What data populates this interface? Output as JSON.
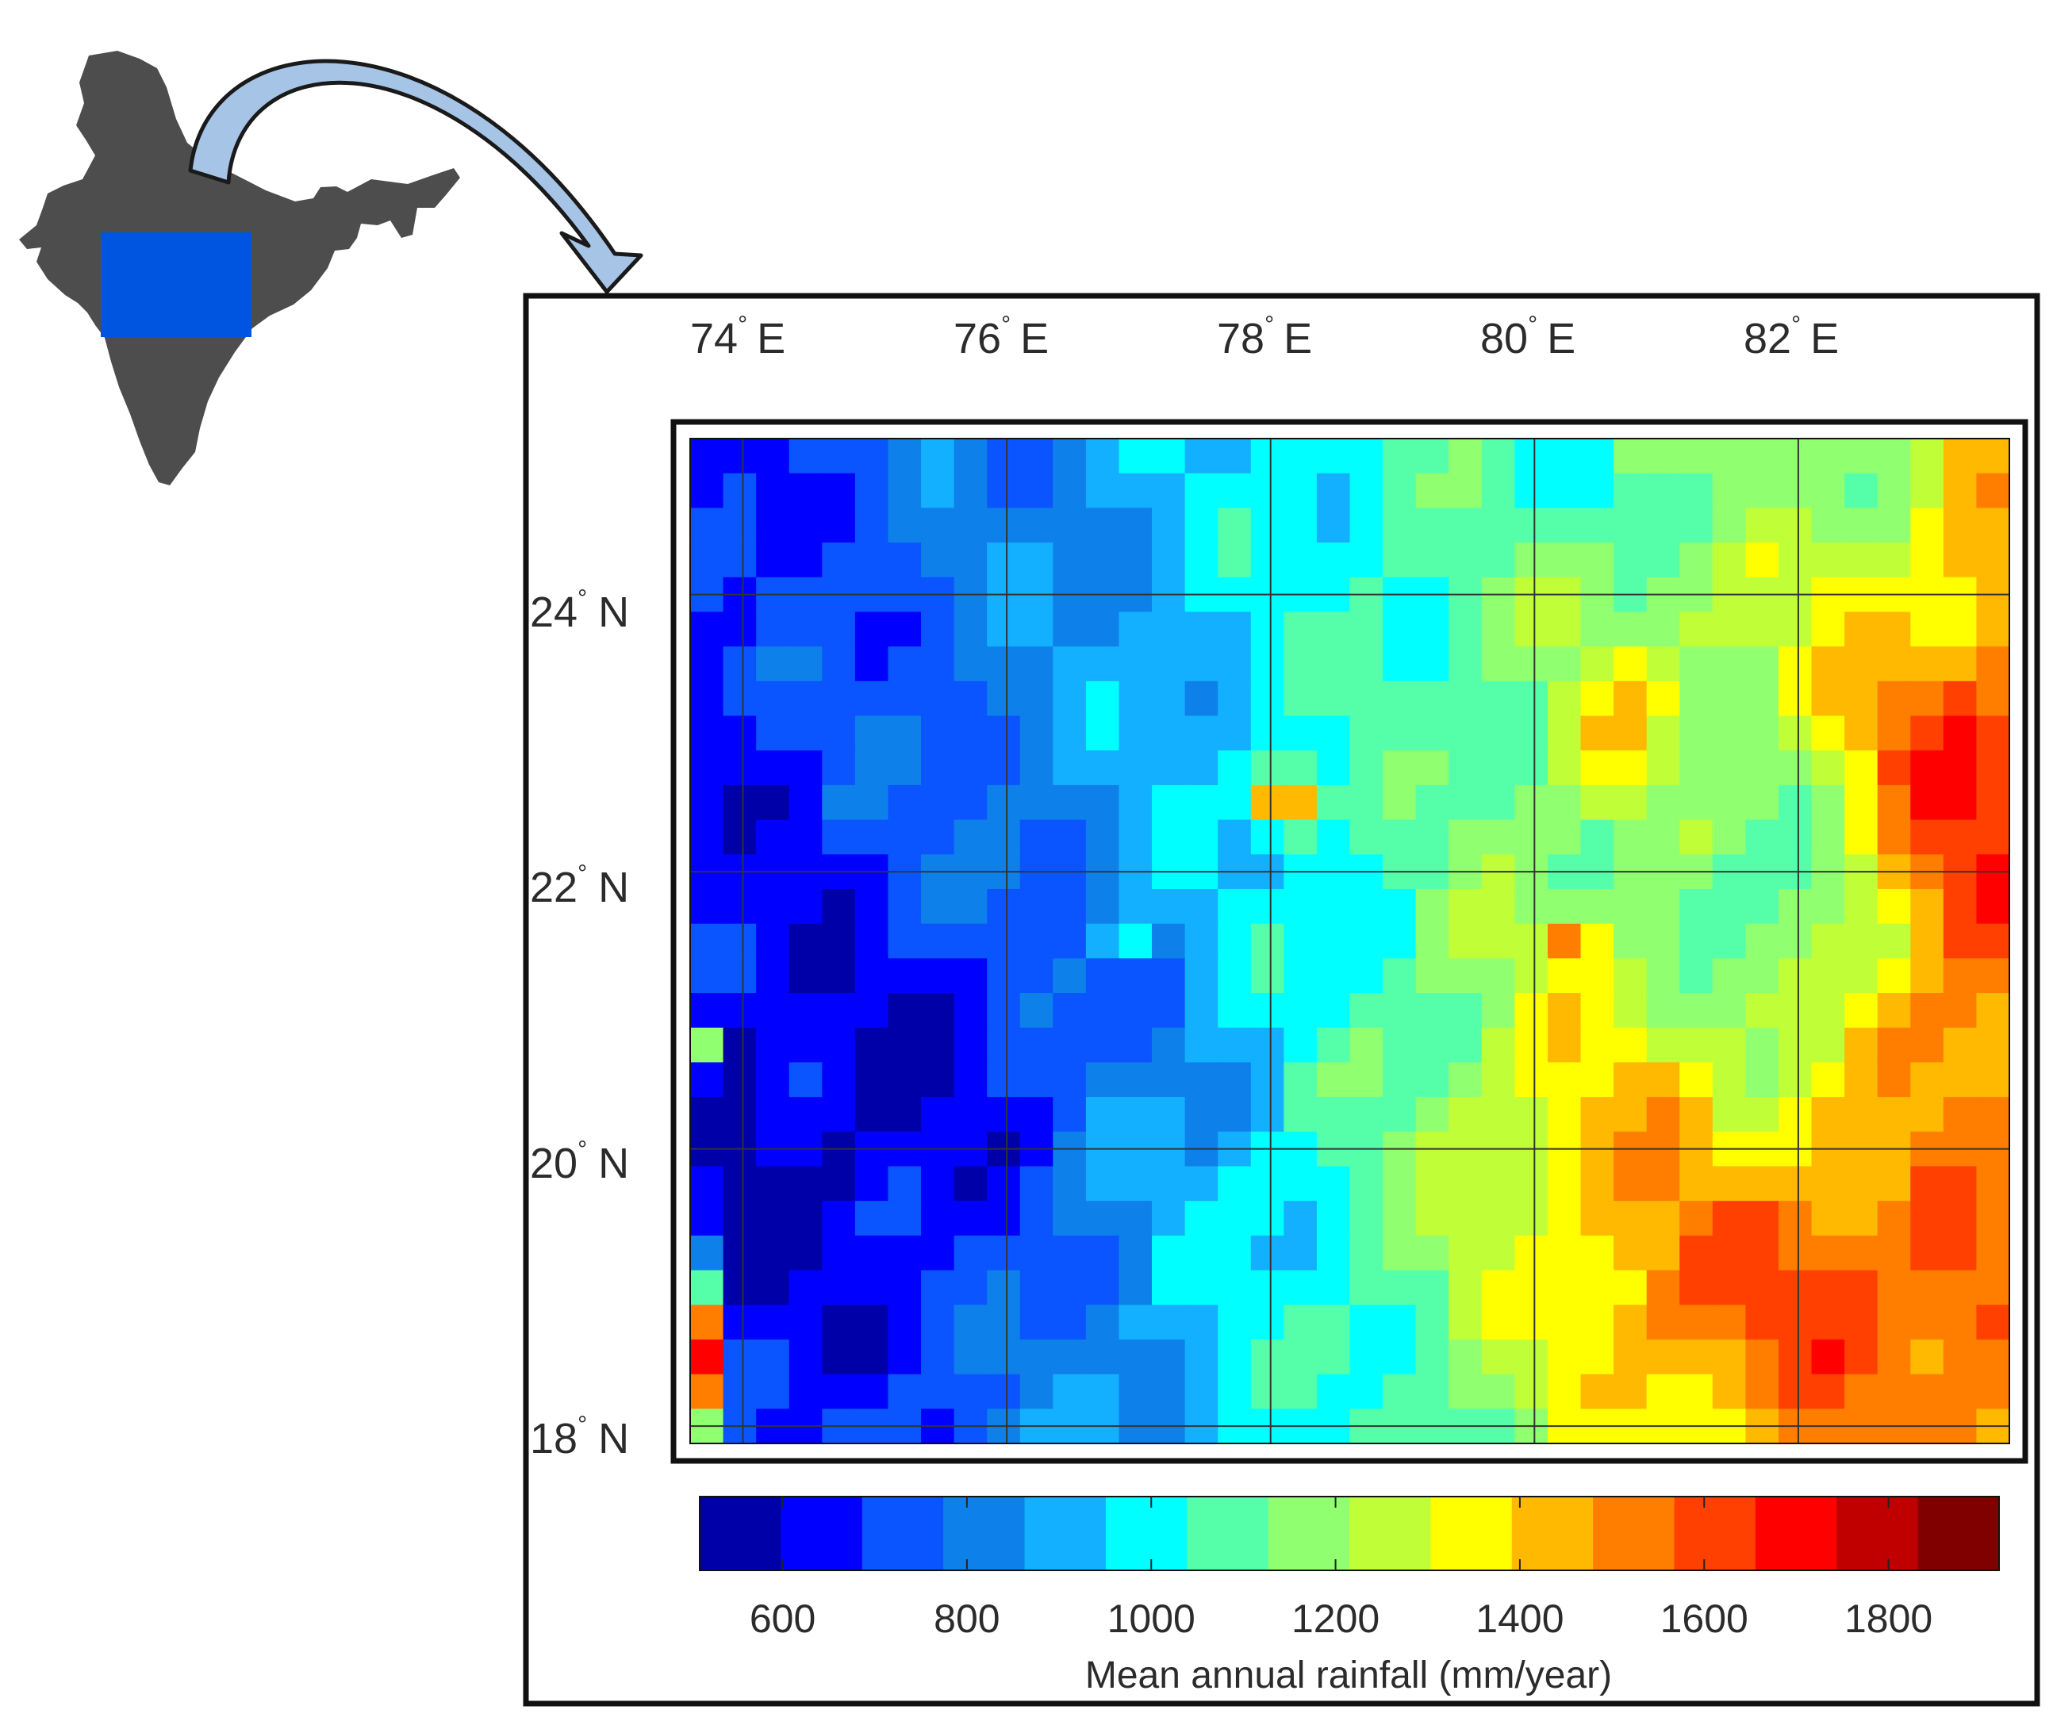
{
  "map": {
    "lon_labels": [
      {
        "deg": "74",
        "dir": "E"
      },
      {
        "deg": "76",
        "dir": "E"
      },
      {
        "deg": "78",
        "dir": "E"
      },
      {
        "deg": "80",
        "dir": "E"
      },
      {
        "deg": "82",
        "dir": "E"
      }
    ],
    "lat_labels": [
      {
        "deg": "24",
        "dir": "N"
      },
      {
        "deg": "22",
        "dir": "N"
      },
      {
        "deg": "20",
        "dir": "N"
      },
      {
        "deg": "18",
        "dir": "N"
      }
    ],
    "degree_symbol": "°",
    "extent": {
      "lon_min": 73.6,
      "lon_max": 83.6,
      "lat_min": 17.875,
      "lat_max": 25.125
    },
    "grid_lons": [
      74,
      76,
      78,
      80,
      82
    ],
    "grid_lats": [
      24,
      22,
      20,
      18
    ]
  },
  "colorbar": {
    "title": "Mean annual rainfall (mm/year)",
    "range": [
      510,
      1920
    ],
    "tick_values": [
      600,
      800,
      1000,
      1200,
      1400,
      1600,
      1800
    ],
    "tick_labels": [
      "600",
      "800",
      "1000",
      "1200",
      "1400",
      "1600",
      "1800"
    ],
    "colors": [
      "#0000a8",
      "#0000ff",
      "#0a55ff",
      "#0e80ea",
      "#12b0ff",
      "#00ffff",
      "#55ffaa",
      "#90ff70",
      "#c0ff38",
      "#ffff00",
      "#ffb900",
      "#ff7e00",
      "#ff4000",
      "#ff0000",
      "#c00000",
      "#800000"
    ]
  },
  "inset": {
    "highlight_color": "#0055e0",
    "land_color": "#4d4d4d",
    "arrow_color": "#a6c4e6"
  },
  "colors": {
    "frame": "#111111",
    "grid": "#333333"
  }
}
